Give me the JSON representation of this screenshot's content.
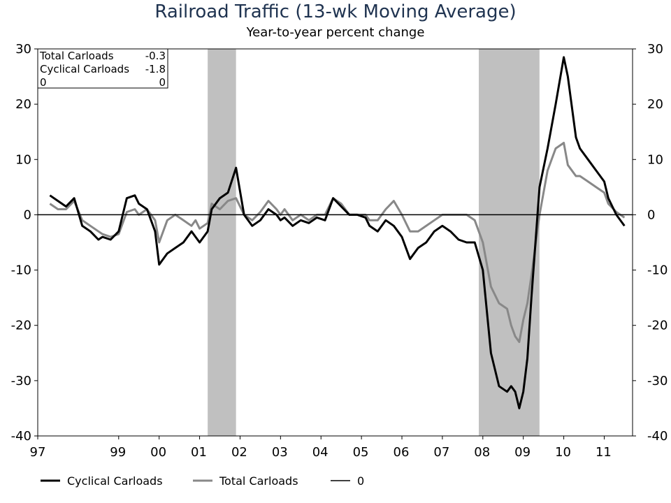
{
  "chart_data": {
    "type": "line",
    "title": "Railroad Traffic (13-wk Moving Average)",
    "subtitle": "Year-to-year percent change",
    "xlabel": "",
    "ylabel": "",
    "xlim": [
      1997,
      2011.7
    ],
    "ylim": [
      -40,
      30
    ],
    "x_ticks": [
      {
        "x": 1997,
        "label": "97"
      },
      {
        "x": 1999,
        "label": "99"
      },
      {
        "x": 2000,
        "label": "00"
      },
      {
        "x": 2001,
        "label": "01"
      },
      {
        "x": 2002,
        "label": "02"
      },
      {
        "x": 2003,
        "label": "03"
      },
      {
        "x": 2004,
        "label": "04"
      },
      {
        "x": 2005,
        "label": "05"
      },
      {
        "x": 2006,
        "label": "06"
      },
      {
        "x": 2007,
        "label": "07"
      },
      {
        "x": 2008,
        "label": "08"
      },
      {
        "x": 2009,
        "label": "09"
      },
      {
        "x": 2010,
        "label": "10"
      },
      {
        "x": 2011,
        "label": "11"
      }
    ],
    "y_ticks": [
      30,
      20,
      10,
      0,
      -10,
      -20,
      -30,
      -40
    ],
    "recessions": [
      [
        2001.2,
        2001.9
      ],
      [
        2007.9,
        2009.4
      ]
    ],
    "annotation_box": [
      {
        "name": "Total Carloads",
        "value": "-0.3"
      },
      {
        "name": "Cyclical Carloads",
        "value": "-1.8"
      },
      {
        "name": "0",
        "value": "0"
      }
    ],
    "legend": [
      {
        "name": "Cyclical Carloads",
        "color": "#000000"
      },
      {
        "name": "Total Carloads",
        "color": "#888888"
      },
      {
        "name": "0",
        "color": "#000000"
      }
    ],
    "legend_position": "bottom",
    "series": [
      {
        "name": "Cyclical Carloads",
        "color": "#000000",
        "x": [
          1997.3,
          1997.5,
          1997.7,
          1997.9,
          1998.1,
          1998.3,
          1998.5,
          1998.6,
          1998.8,
          1999.0,
          1999.2,
          1999.4,
          1999.5,
          1999.7,
          1999.9,
          2000.0,
          2000.2,
          2000.4,
          2000.6,
          2000.8,
          2000.9,
          2001.0,
          2001.2,
          2001.3,
          2001.5,
          2001.7,
          2001.9,
          2002.1,
          2002.3,
          2002.5,
          2002.7,
          2002.9,
          2003.0,
          2003.1,
          2003.3,
          2003.5,
          2003.7,
          2003.9,
          2004.1,
          2004.3,
          2004.5,
          2004.7,
          2004.9,
          2005.1,
          2005.2,
          2005.4,
          2005.6,
          2005.8,
          2006.0,
          2006.2,
          2006.4,
          2006.6,
          2006.8,
          2007.0,
          2007.2,
          2007.4,
          2007.6,
          2007.8,
          2008.0,
          2008.2,
          2008.4,
          2008.6,
          2008.7,
          2008.8,
          2008.9,
          2009.0,
          2009.1,
          2009.2,
          2009.4,
          2009.6,
          2009.8,
          2010.0,
          2010.1,
          2010.3,
          2010.4,
          2010.6,
          2010.8,
          2011.0,
          2011.1,
          2011.3,
          2011.5
        ],
        "values": [
          3.5,
          2.5,
          1.5,
          3.0,
          -2.0,
          -3.0,
          -4.5,
          -4.0,
          -4.5,
          -3.0,
          3.0,
          3.5,
          2.0,
          1.0,
          -3.0,
          -9.0,
          -7.0,
          -6.0,
          -5.0,
          -3.0,
          -4.0,
          -5.0,
          -3.0,
          1.0,
          3.0,
          4.0,
          8.5,
          0.0,
          -2.0,
          -1.0,
          1.0,
          0.0,
          -1.0,
          -0.5,
          -2.0,
          -1.0,
          -1.5,
          -0.5,
          -1.0,
          3.0,
          1.5,
          0.0,
          0.0,
          -0.5,
          -2.0,
          -3.0,
          -1.0,
          -2.0,
          -4.0,
          -8.0,
          -6.0,
          -5.0,
          -3.0,
          -2.0,
          -3.0,
          -4.5,
          -5.0,
          -5.0,
          -10.0,
          -25.0,
          -31.0,
          -32.0,
          -31.0,
          -32.0,
          -35.0,
          -32.0,
          -26.0,
          -15.0,
          5.0,
          12.0,
          20.0,
          28.5,
          25.0,
          14.0,
          12.0,
          10.0,
          8.0,
          6.0,
          3.0,
          0.0,
          -2.0
        ]
      },
      {
        "name": "Total Carloads",
        "color": "#888888",
        "x": [
          1997.3,
          1997.5,
          1997.7,
          1997.9,
          1998.1,
          1998.3,
          1998.5,
          1998.6,
          1998.8,
          1999.0,
          1999.2,
          1999.4,
          1999.5,
          1999.7,
          1999.9,
          2000.0,
          2000.2,
          2000.4,
          2000.6,
          2000.8,
          2000.9,
          2001.0,
          2001.2,
          2001.3,
          2001.5,
          2001.7,
          2001.9,
          2002.1,
          2002.3,
          2002.5,
          2002.7,
          2002.9,
          2003.0,
          2003.1,
          2003.3,
          2003.5,
          2003.7,
          2003.9,
          2004.1,
          2004.3,
          2004.5,
          2004.7,
          2004.9,
          2005.1,
          2005.2,
          2005.4,
          2005.6,
          2005.8,
          2006.0,
          2006.2,
          2006.4,
          2006.6,
          2006.8,
          2007.0,
          2007.2,
          2007.4,
          2007.6,
          2007.8,
          2008.0,
          2008.2,
          2008.4,
          2008.6,
          2008.7,
          2008.8,
          2008.9,
          2009.0,
          2009.1,
          2009.2,
          2009.4,
          2009.6,
          2009.8,
          2010.0,
          2010.1,
          2010.3,
          2010.4,
          2010.6,
          2010.8,
          2011.0,
          2011.1,
          2011.3,
          2011.5
        ],
        "values": [
          2.0,
          1.0,
          1.0,
          2.5,
          -1.0,
          -2.0,
          -3.0,
          -3.5,
          -4.0,
          -3.5,
          0.5,
          1.0,
          0.0,
          1.0,
          -1.0,
          -5.0,
          -1.0,
          0.0,
          -1.0,
          -2.0,
          -1.0,
          -2.5,
          -1.5,
          2.0,
          1.0,
          2.5,
          3.0,
          0.0,
          -1.0,
          0.5,
          2.5,
          1.0,
          0.0,
          1.0,
          -1.0,
          0.0,
          -1.0,
          0.0,
          0.0,
          3.0,
          2.0,
          0.0,
          0.0,
          0.0,
          -1.0,
          -1.0,
          1.0,
          2.5,
          0.0,
          -3.0,
          -3.0,
          -2.0,
          -1.0,
          0.0,
          0.0,
          0.0,
          0.0,
          -1.0,
          -5.0,
          -13.0,
          -16.0,
          -17.0,
          -20.0,
          -22.0,
          -23.0,
          -19.0,
          -16.0,
          -11.0,
          0.0,
          8.0,
          12.0,
          13.0,
          9.0,
          7.0,
          7.0,
          6.0,
          5.0,
          4.0,
          2.0,
          0.5,
          -0.5
        ]
      },
      {
        "name": "0",
        "color": "#000000",
        "x": [
          1997.0,
          2011.7
        ],
        "values": [
          0,
          0
        ]
      }
    ]
  }
}
